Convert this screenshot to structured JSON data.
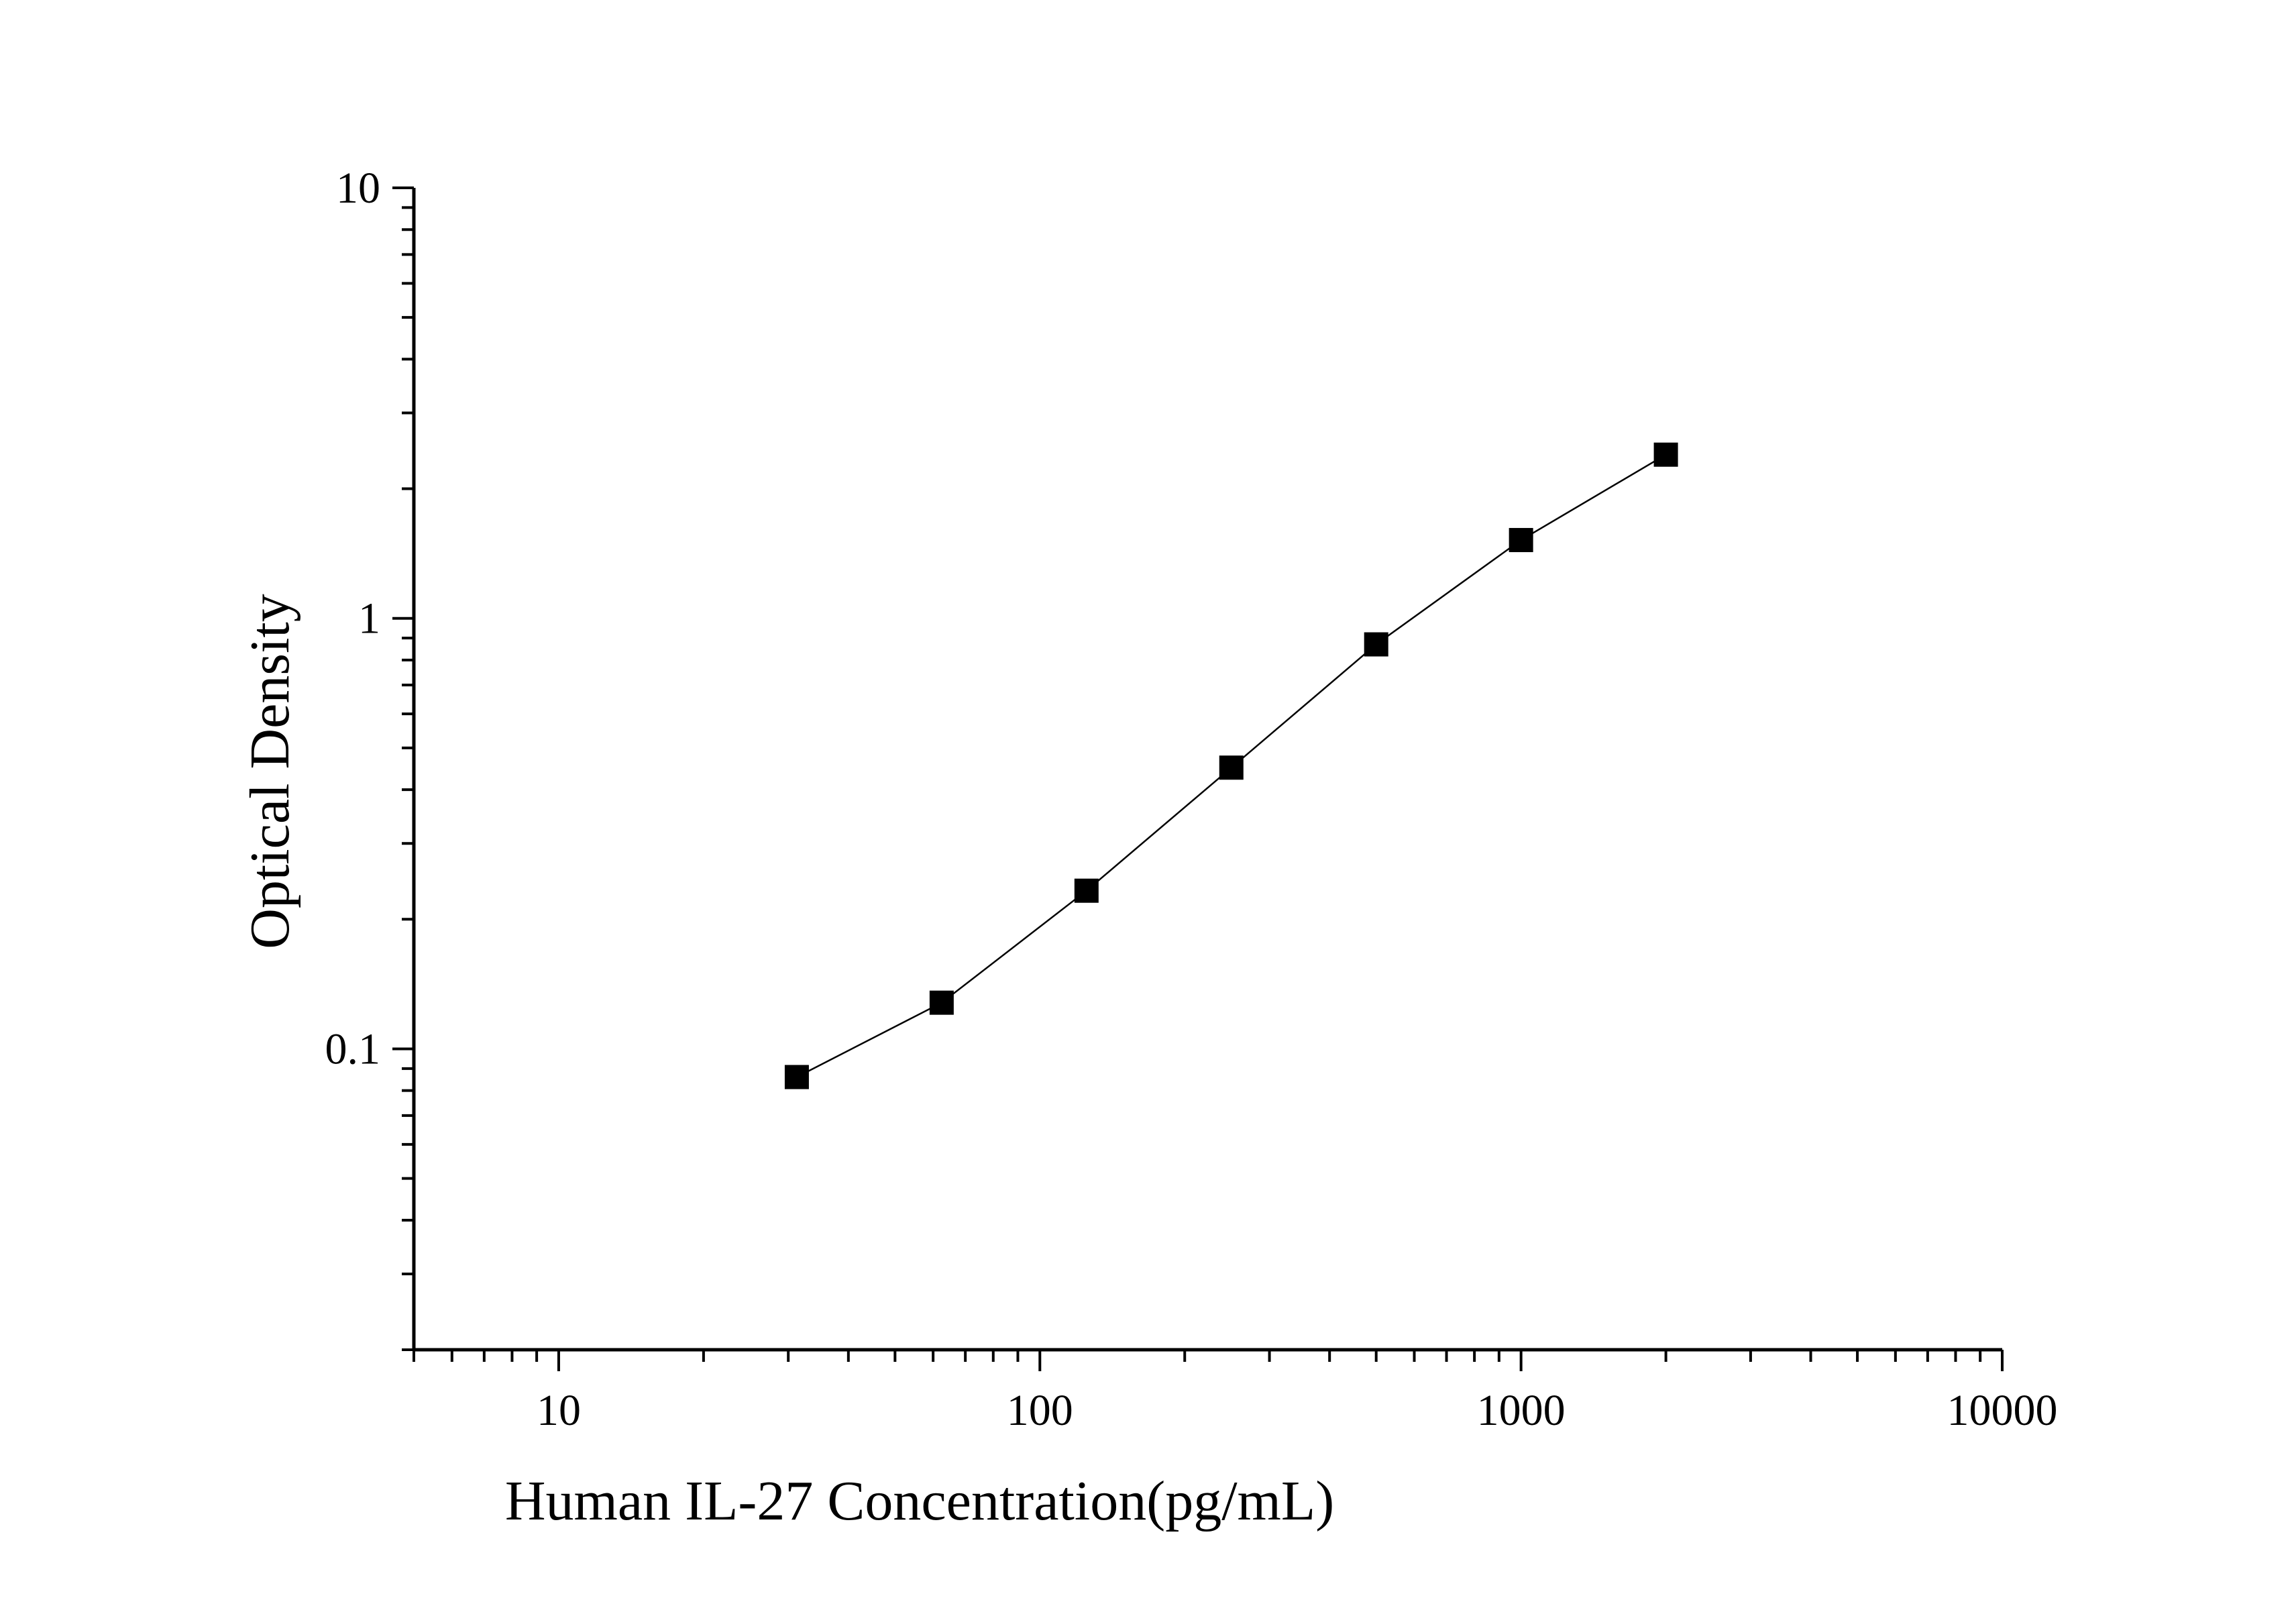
{
  "chart_data": {
    "type": "scatter",
    "title": "",
    "xlabel": "Human IL-27 Concentration(pg/mL)",
    "ylabel": "Optical Density",
    "x_scale": "log",
    "y_scale": "log",
    "xlim": [
      5,
      10000
    ],
    "ylim": [
      0.02,
      10
    ],
    "x_ticks": [
      {
        "value": 10,
        "label": "10"
      },
      {
        "value": 100,
        "label": "100"
      },
      {
        "value": 1000,
        "label": "1000"
      },
      {
        "value": 10000,
        "label": "10000"
      }
    ],
    "y_ticks": [
      {
        "value": 0.1,
        "label": "0.1"
      },
      {
        "value": 1,
        "label": "1"
      },
      {
        "value": 10,
        "label": "10"
      }
    ],
    "grid": false,
    "legend": "none",
    "series": [
      {
        "marker": "square",
        "line": true,
        "color": "#000000",
        "x": [
          31.25,
          62.5,
          125,
          250,
          500,
          1000,
          2000
        ],
        "y": [
          0.086,
          0.128,
          0.233,
          0.45,
          0.87,
          1.52,
          2.4
        ]
      }
    ]
  }
}
